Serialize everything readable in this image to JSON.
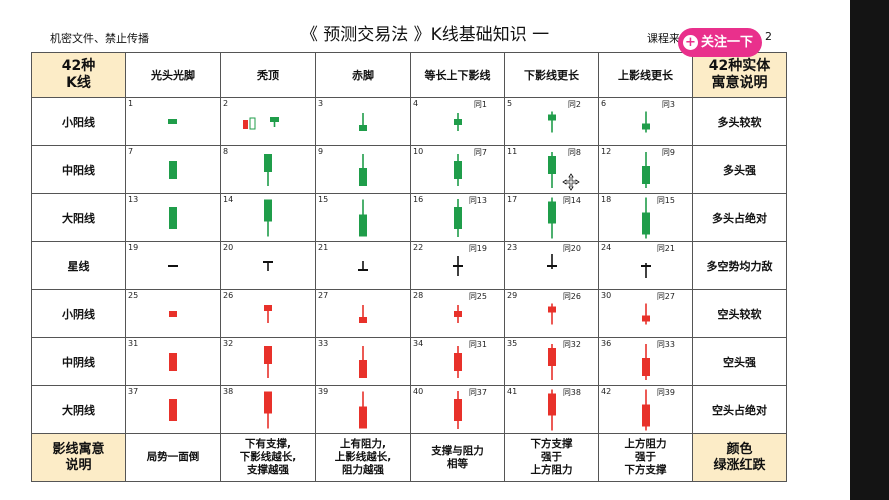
{
  "header": {
    "left_note": "机密文件、禁止传播",
    "title": "《 预测交易法 》K线基础知识 一",
    "right_text": "课程来",
    "right_tail": "2",
    "follow_label": "关注一下"
  },
  "table": {
    "corner": [
      "42种",
      "K线"
    ],
    "meaning_header": [
      "42种实体",
      "寓意说明"
    ],
    "columns": [
      "光头光脚",
      "秃顶",
      "赤脚",
      "等长上下影线",
      "下影线更长",
      "上影线更长"
    ],
    "rows": [
      {
        "label": "小阳线",
        "meaning": "多头较软",
        "color": "green",
        "body": "small",
        "cells": [
          {
            "num": "1"
          },
          {
            "num": "2"
          },
          {
            "num": "3"
          },
          {
            "num": "4",
            "same": "同1"
          },
          {
            "num": "5",
            "same": "同2"
          },
          {
            "num": "6",
            "same": "同3"
          }
        ]
      },
      {
        "label": "中阳线",
        "meaning": "多头强",
        "color": "green",
        "body": "medium",
        "cells": [
          {
            "num": "7"
          },
          {
            "num": "8"
          },
          {
            "num": "9"
          },
          {
            "num": "10",
            "same": "同7"
          },
          {
            "num": "11",
            "same": "同8"
          },
          {
            "num": "12",
            "same": "同9"
          }
        ]
      },
      {
        "label": "大阳线",
        "meaning": "多头占绝对",
        "color": "green",
        "body": "large",
        "cells": [
          {
            "num": "13"
          },
          {
            "num": "14"
          },
          {
            "num": "15"
          },
          {
            "num": "16",
            "same": "同13"
          },
          {
            "num": "17",
            "same": "同14"
          },
          {
            "num": "18",
            "same": "同15"
          }
        ]
      },
      {
        "label": "星线",
        "meaning": "多空势均力敌",
        "color": "black",
        "body": "star",
        "cells": [
          {
            "num": "19"
          },
          {
            "num": "20"
          },
          {
            "num": "21"
          },
          {
            "num": "22",
            "same": "同19"
          },
          {
            "num": "23",
            "same": "同20"
          },
          {
            "num": "24",
            "same": "同21"
          }
        ]
      },
      {
        "label": "小阴线",
        "meaning": "空头较软",
        "color": "red",
        "body": "small",
        "cells": [
          {
            "num": "25"
          },
          {
            "num": "26"
          },
          {
            "num": "27"
          },
          {
            "num": "28",
            "same": "同25"
          },
          {
            "num": "29",
            "same": "同26"
          },
          {
            "num": "30",
            "same": "同27"
          }
        ]
      },
      {
        "label": "中阴线",
        "meaning": "空头强",
        "color": "red",
        "body": "medium",
        "cells": [
          {
            "num": "31"
          },
          {
            "num": "32"
          },
          {
            "num": "33"
          },
          {
            "num": "34",
            "same": "同31"
          },
          {
            "num": "35",
            "same": "同32"
          },
          {
            "num": "36",
            "same": "同33"
          }
        ]
      },
      {
        "label": "大阴线",
        "meaning": "空头占绝对",
        "color": "red",
        "body": "large",
        "cells": [
          {
            "num": "37"
          },
          {
            "num": "38"
          },
          {
            "num": "39"
          },
          {
            "num": "40",
            "same": "同37"
          },
          {
            "num": "41",
            "same": "同38"
          },
          {
            "num": "42",
            "same": "同39"
          }
        ]
      }
    ],
    "footer": {
      "label": [
        "影线寓意",
        "说明"
      ],
      "cells": [
        [
          "局势一面倒"
        ],
        [
          "下有支撑,",
          "下影线越长,",
          "支撑越强"
        ],
        [
          "上有阻力,",
          "上影线越长,",
          "阻力越强"
        ],
        [
          "支撑与阻力",
          "相等"
        ],
        [
          "下方支撑",
          "强于",
          "上方阻力"
        ],
        [
          "上方阻力",
          "强于",
          "下方支撑"
        ]
      ],
      "meaning": [
        "颜色",
        "绿涨红跌"
      ]
    }
  },
  "colors": {
    "green": "#1f9d4a",
    "red": "#e8312a",
    "black": "#111111",
    "accent": "#fcecc7",
    "follow": "#e9308c"
  },
  "icons": {
    "follow": "plus-circle-icon",
    "cursor": "move-cursor-icon"
  }
}
